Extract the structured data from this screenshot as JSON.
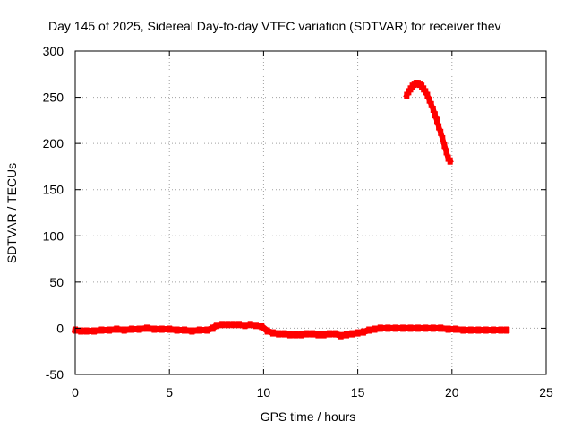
{
  "chart_data": {
    "type": "scatter",
    "title": "Day 145 of 2025, Sidereal Day-to-day VTEC variation (SDTVAR) for receiver thev",
    "xlabel": "GPS time / hours",
    "ylabel": "SDTVAR / TECUs",
    "xlim": [
      0,
      25
    ],
    "ylim": [
      -50,
      300
    ],
    "xticks": [
      0,
      5,
      10,
      15,
      20,
      25
    ],
    "yticks": [
      -50,
      0,
      50,
      100,
      150,
      200,
      250,
      300
    ],
    "grid": true,
    "legend": "none",
    "colors": {
      "series": "#ff0000",
      "grid": "#a0a0a0",
      "axes": "#000000"
    },
    "series": [
      {
        "x": [
          0.0,
          0.3,
          0.6,
          1.0,
          1.4,
          1.8,
          2.2,
          2.6,
          3.0,
          3.4,
          3.8,
          4.2,
          4.6,
          5.0,
          5.4,
          5.8,
          6.2,
          6.6,
          7.0,
          7.3,
          7.5,
          7.8,
          8.1,
          8.4,
          8.7,
          9.0,
          9.3,
          9.6,
          9.9,
          10.2,
          10.5,
          10.8,
          11.1,
          11.4,
          11.7,
          12.0,
          12.3,
          12.6,
          12.9,
          13.2,
          13.5,
          13.8,
          14.1,
          14.4,
          14.7,
          15.0,
          15.3,
          15.6,
          15.9,
          16.2,
          16.6,
          17.0,
          17.4,
          17.8,
          18.2,
          18.6,
          19.0,
          19.4,
          19.8,
          20.2,
          20.6,
          21.0,
          21.4,
          21.8,
          22.2,
          22.6,
          22.9
        ],
        "y": [
          -2,
          -3,
          -3,
          -3,
          -2,
          -2,
          -1,
          -2,
          -1,
          -1,
          0,
          -1,
          -1,
          -1,
          -2,
          -2,
          -3,
          -2,
          -2,
          0,
          3,
          4,
          4,
          4,
          4,
          3,
          4,
          3,
          2,
          -3,
          -5,
          -6,
          -6,
          -7,
          -7,
          -7,
          -6,
          -6,
          -7,
          -7,
          -6,
          -6,
          -8,
          -7,
          -6,
          -5,
          -4,
          -2,
          -1,
          0,
          0,
          0,
          0,
          0,
          0,
          0,
          0,
          0,
          -1,
          -1,
          -2,
          -2,
          -2,
          -2,
          -2,
          -2,
          -2
        ]
      },
      {
        "x": [
          17.6,
          17.7,
          17.8,
          17.9,
          18.0,
          18.1,
          18.2,
          18.3,
          18.4,
          18.5,
          18.6,
          18.7,
          18.8,
          18.9,
          19.0,
          19.1,
          19.2,
          19.3,
          19.4,
          19.5,
          19.6,
          19.7,
          19.8,
          19.9
        ],
        "y": [
          252,
          256,
          259,
          262,
          264,
          265,
          265,
          264,
          262,
          259,
          256,
          252,
          247,
          242,
          237,
          231,
          225,
          218,
          212,
          205,
          198,
          191,
          184,
          181
        ]
      }
    ]
  }
}
